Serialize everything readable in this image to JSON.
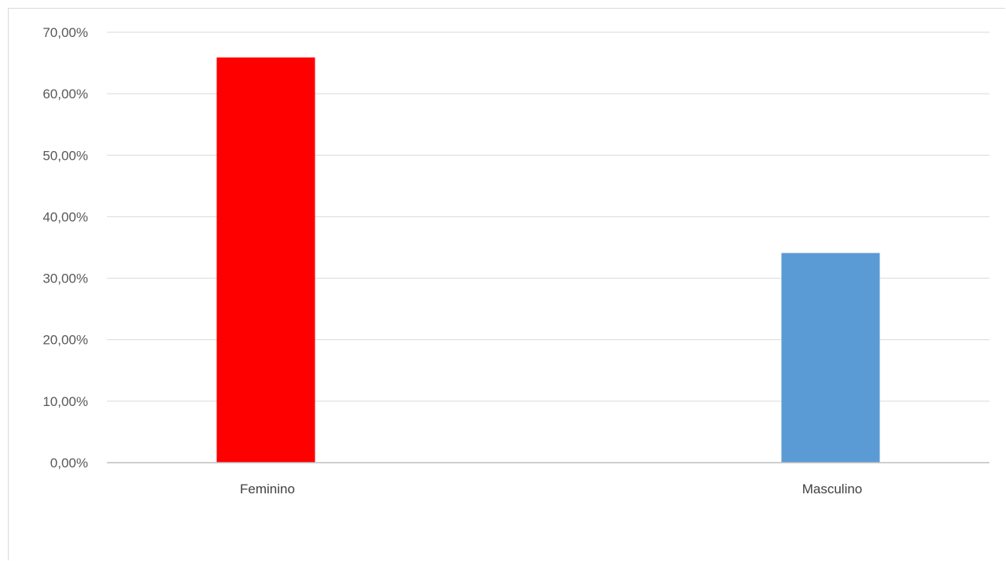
{
  "chart_data": {
    "type": "bar",
    "title": "",
    "xlabel": "",
    "ylabel": "",
    "categories": [
      "Feminino",
      "Masculino"
    ],
    "values": [
      65.9,
      34.1
    ],
    "colors": [
      "#ff0000",
      "#5b9bd5"
    ],
    "ylim": [
      0,
      70
    ],
    "yticks": [
      0,
      10,
      20,
      30,
      40,
      50,
      60,
      70
    ],
    "ytick_labels": [
      "0,00%",
      "10,00%",
      "20,00%",
      "30,00%",
      "40,00%",
      "50,00%",
      "60,00%",
      "70,00%"
    ],
    "grid": true,
    "legend": "none"
  }
}
